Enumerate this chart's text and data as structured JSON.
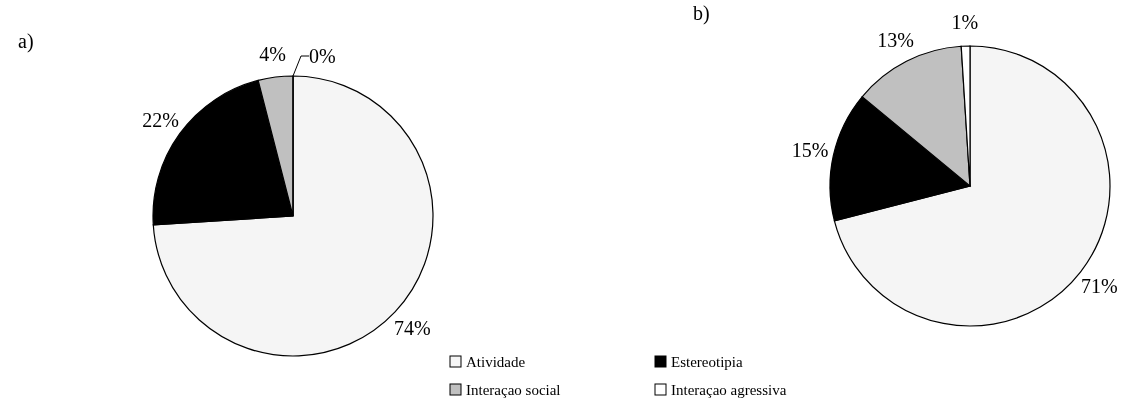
{
  "chart_data": [
    {
      "type": "pie",
      "title": "a)",
      "categories": [
        "Atividade",
        "Estereotipia",
        "Interaçao social",
        "Interaçao agressiva"
      ],
      "values": [
        74,
        22,
        4,
        0
      ],
      "value_labels": [
        "74%",
        "22%",
        "4%",
        "0%"
      ],
      "colors": [
        "#f5f5f5",
        "#000000",
        "#c0c0c0",
        "#ffffff"
      ],
      "legend": "bottom"
    },
    {
      "type": "pie",
      "title": "b)",
      "values": [
        71,
        15,
        13,
        1
      ],
      "value_labels": [
        "71%",
        "15%",
        "13%",
        "1%"
      ],
      "colors": [
        "#f5f5f5",
        "#000000",
        "#c0c0c0",
        "#ffffff"
      ]
    }
  ]
}
